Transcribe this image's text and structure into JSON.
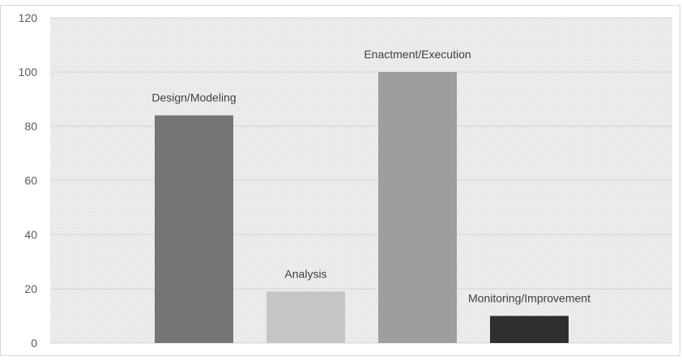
{
  "chart_data": {
    "type": "bar",
    "categories": [
      "Design/Modeling",
      "Analysis",
      "Enactment/Execution",
      "Monitoring/Improvement"
    ],
    "values": [
      84,
      19,
      100,
      10
    ],
    "bar_colors": [
      "#757575",
      "#c6c7c5",
      "#9e9e9e",
      "#2f2f2f"
    ],
    "ylim": [
      0,
      120
    ],
    "yticks": [
      0,
      20,
      40,
      60,
      80,
      100,
      120
    ],
    "grid": true,
    "legend": false,
    "data_labels": "category names above bars",
    "plot_background": "#efefef",
    "grid_color": "#d4d4d4"
  }
}
